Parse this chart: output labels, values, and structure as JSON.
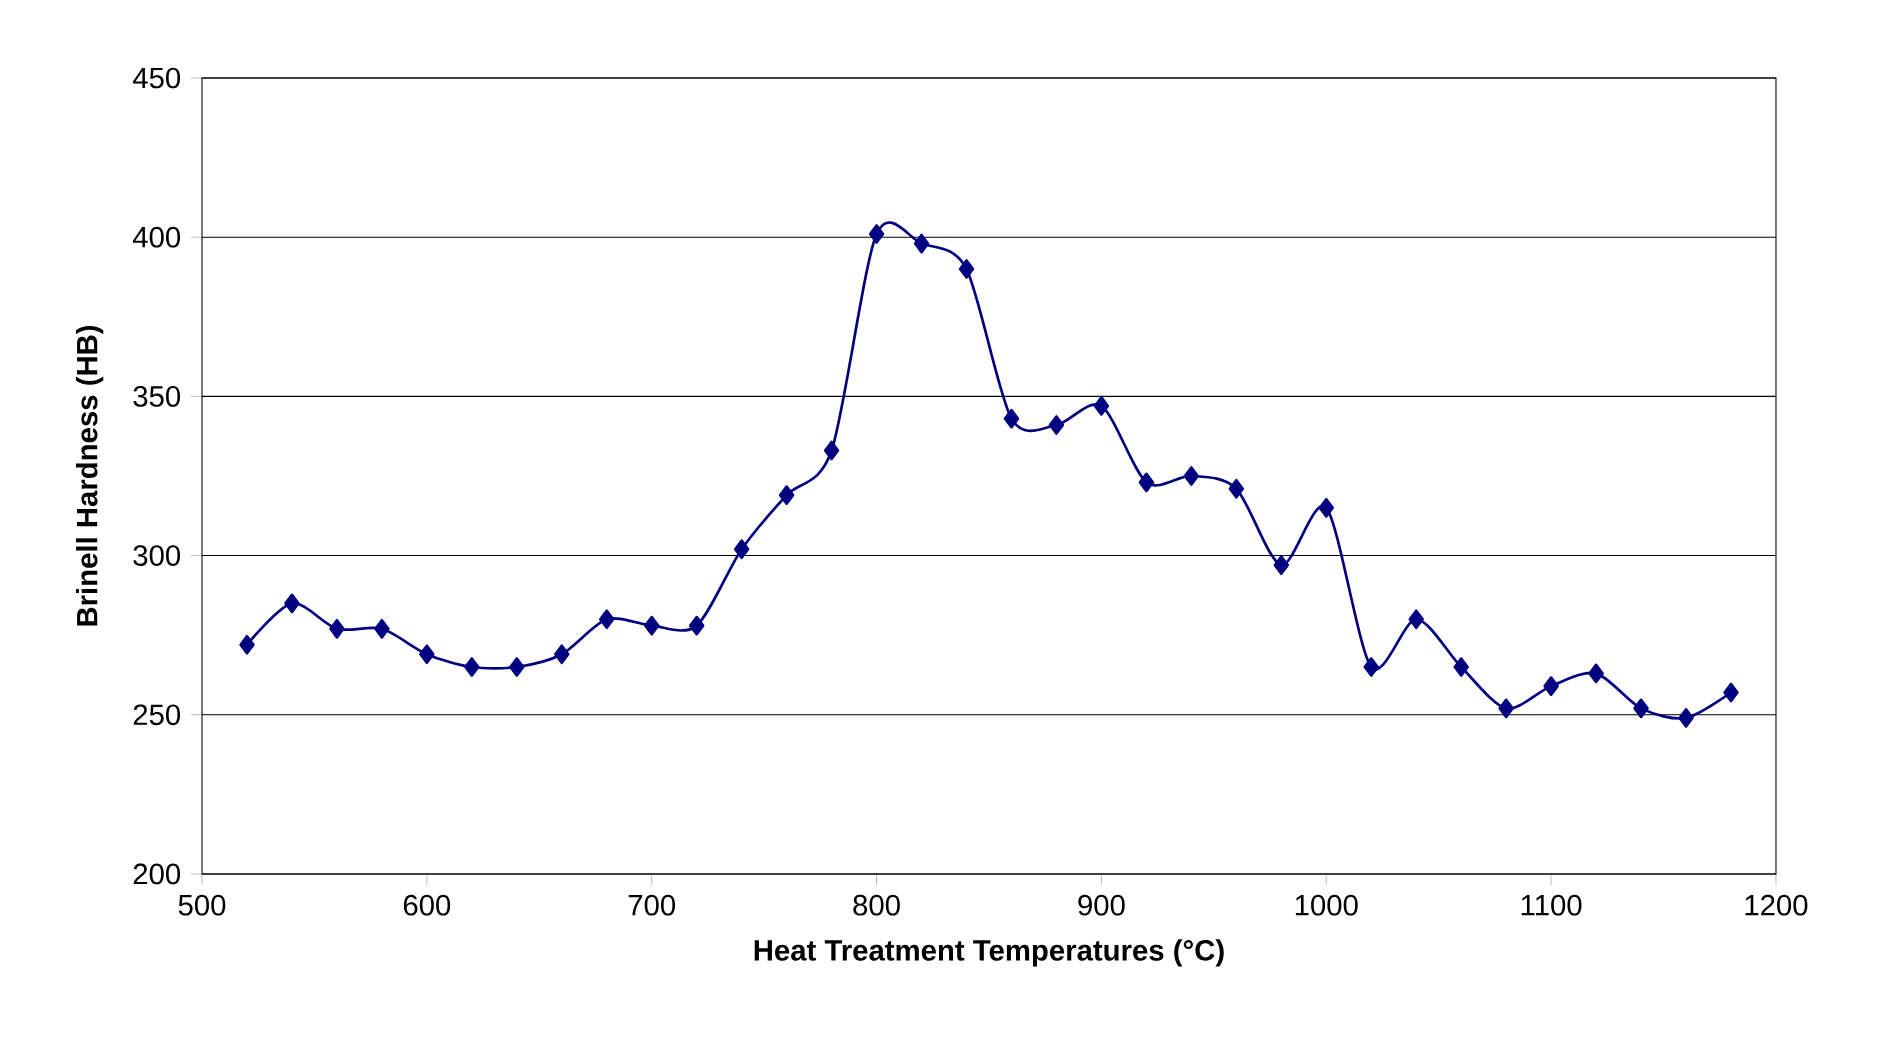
{
  "chart_data": {
    "type": "line",
    "xlabel": "Heat Treatment Temperatures (°C)",
    "ylabel": "Brinell Hardness (HB)",
    "x": [
      520,
      540,
      560,
      580,
      600,
      620,
      640,
      660,
      680,
      700,
      720,
      740,
      760,
      780,
      800,
      820,
      840,
      860,
      880,
      900,
      920,
      940,
      960,
      980,
      1000,
      1020,
      1040,
      1060,
      1080,
      1100,
      1120,
      1140,
      1160,
      1180
    ],
    "series": [
      {
        "color": "#000080",
        "values": [
          272,
          285,
          277,
          277,
          269,
          265,
          265,
          269,
          280,
          278,
          278,
          302,
          319,
          333,
          401,
          398,
          390,
          343,
          341,
          347,
          323,
          325,
          321,
          297,
          315,
          265,
          280,
          265,
          252,
          259,
          263,
          252,
          249,
          257
        ]
      }
    ],
    "xlim": [
      500,
      1200
    ],
    "xticks": [
      500,
      600,
      700,
      800,
      900,
      1000,
      1100,
      1200
    ],
    "ylim": [
      200,
      450
    ],
    "yticks": [
      200,
      250,
      300,
      350,
      400,
      450
    ],
    "grid": "y",
    "marker": "diamond",
    "line_style": "solid"
  }
}
